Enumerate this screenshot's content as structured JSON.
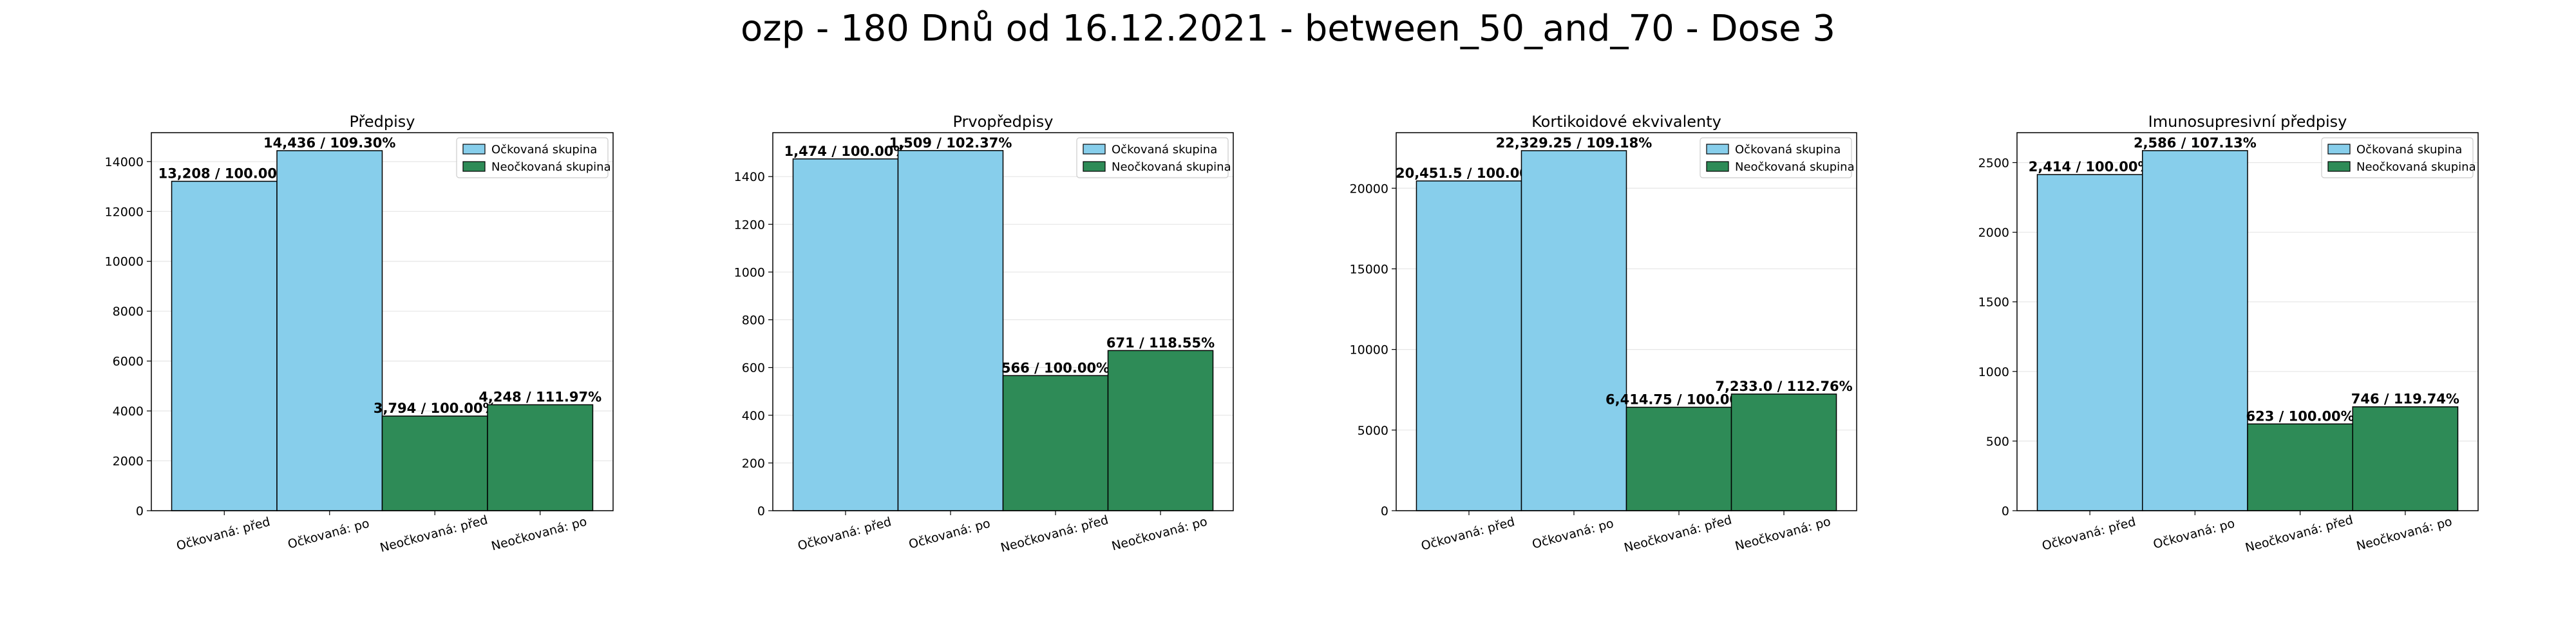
{
  "figure_title": "ozp - 180 Dnů od 16.12.2021 - between_50_and_70 - Dose 3",
  "colors": {
    "vaccinated": "#87ceeb",
    "unvaccinated": "#2e8b57",
    "bar_edge": "#000000",
    "grid": "#e6e6e6"
  },
  "chart_data": [
    {
      "type": "bar",
      "title": "Předpisy",
      "categories": [
        "Očkovaná: před",
        "Očkovaná: po",
        "Neočkovaná: před",
        "Neočkovaná: po"
      ],
      "values": [
        13208,
        14436,
        3794,
        4248
      ],
      "labels": [
        "13,208 / 100.00%",
        "14,436 / 109.30%",
        "3,794 / 100.00%",
        "4,248 / 111.97%"
      ],
      "groups": [
        "vaccinated",
        "vaccinated",
        "unvaccinated",
        "unvaccinated"
      ],
      "legend": [
        "Očkovaná skupina",
        "Neočkovaná skupina"
      ],
      "legend_position": "top-right",
      "ylim": [
        0,
        15158
      ],
      "yticks": [
        0,
        2000,
        4000,
        6000,
        8000,
        10000,
        12000,
        14000
      ],
      "ytick_labels": [
        "0",
        "2000",
        "4000",
        "6000",
        "8000",
        "10000",
        "12000",
        "14000"
      ],
      "grid": "y"
    },
    {
      "type": "bar",
      "title": "Prvopředpisy",
      "categories": [
        "Očkovaná: před",
        "Očkovaná: po",
        "Neočkovaná: před",
        "Neočkovaná: po"
      ],
      "values": [
        1474,
        1509,
        566,
        671
      ],
      "labels": [
        "1,474 / 100.00%",
        "1,509 / 102.37%",
        "566 / 100.00%",
        "671 / 118.55%"
      ],
      "groups": [
        "vaccinated",
        "vaccinated",
        "unvaccinated",
        "unvaccinated"
      ],
      "legend": [
        "Očkovaná skupina",
        "Neočkovaná skupina"
      ],
      "legend_position": "top-right",
      "ylim": [
        0,
        1584
      ],
      "yticks": [
        0,
        200,
        400,
        600,
        800,
        1000,
        1200,
        1400
      ],
      "ytick_labels": [
        "0",
        "200",
        "400",
        "600",
        "800",
        "1000",
        "1200",
        "1400"
      ],
      "grid": "y"
    },
    {
      "type": "bar",
      "title": "Kortikoidové ekvivalenty",
      "categories": [
        "Očkovaná: před",
        "Očkovaná: po",
        "Neočkovaná: před",
        "Neočkovaná: po"
      ],
      "values": [
        20451.5,
        22329.25,
        6414.75,
        7233.0
      ],
      "labels": [
        "20,451.5 / 100.00%",
        "22,329.25 / 109.18%",
        "6,414.75 / 100.00%",
        "7,233.0 / 112.76%"
      ],
      "groups": [
        "vaccinated",
        "vaccinated",
        "unvaccinated",
        "unvaccinated"
      ],
      "legend": [
        "Očkovaná skupina",
        "Neočkovaná skupina"
      ],
      "legend_position": "top-right",
      "ylim": [
        0,
        23446
      ],
      "yticks": [
        0,
        5000,
        10000,
        15000,
        20000
      ],
      "ytick_labels": [
        "0",
        "5000",
        "10000",
        "15000",
        "20000"
      ],
      "grid": "y"
    },
    {
      "type": "bar",
      "title": "Imunosupresivní předpisy",
      "categories": [
        "Očkovaná: před",
        "Očkovaná: po",
        "Neočkovaná: před",
        "Neočkovaná: po"
      ],
      "values": [
        2414,
        2586,
        623,
        746
      ],
      "labels": [
        "2,414 / 100.00%",
        "2,586 / 107.13%",
        "623 / 100.00%",
        "746 / 119.74%"
      ],
      "groups": [
        "vaccinated",
        "vaccinated",
        "unvaccinated",
        "unvaccinated"
      ],
      "legend": [
        "Očkovaná skupina",
        "Neočkovaná skupina"
      ],
      "legend_position": "top-right",
      "ylim": [
        0,
        2715
      ],
      "yticks": [
        0,
        500,
        1000,
        1500,
        2000,
        2500
      ],
      "ytick_labels": [
        "0",
        "500",
        "1000",
        "1500",
        "2000",
        "2500"
      ],
      "grid": "y"
    }
  ]
}
